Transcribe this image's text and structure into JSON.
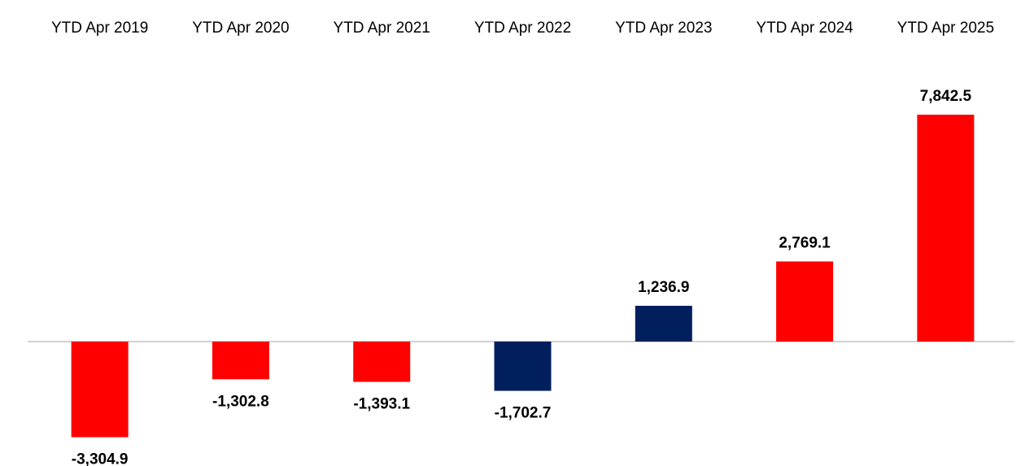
{
  "chart_data": {
    "type": "bar",
    "title": "",
    "xlabel": "",
    "ylabel": "",
    "categories": [
      "YTD Apr 2019",
      "YTD Apr 2020",
      "YTD Apr 2021",
      "YTD Apr 2022",
      "YTD Apr 2023",
      "YTD Apr 2024",
      "YTD Apr 2025"
    ],
    "values": [
      -3304.9,
      -1302.8,
      -1393.1,
      -1702.7,
      1236.9,
      2769.1,
      7842.5
    ],
    "value_labels": [
      "-3,304.9",
      "-1,302.8",
      "-1,393.1",
      "-1,702.7",
      "1,236.9",
      "2,769.1",
      "7,842.5"
    ],
    "bar_colors": [
      "#ff0000",
      "#ff0000",
      "#ff0000",
      "#001f5c",
      "#001f5c",
      "#ff0000",
      "#ff0000"
    ],
    "ylim": [
      -3304.9,
      7842.5
    ],
    "category_labels_position": "top",
    "grid": false,
    "legend": "none",
    "zero_line_color": "#a6a6a6"
  }
}
